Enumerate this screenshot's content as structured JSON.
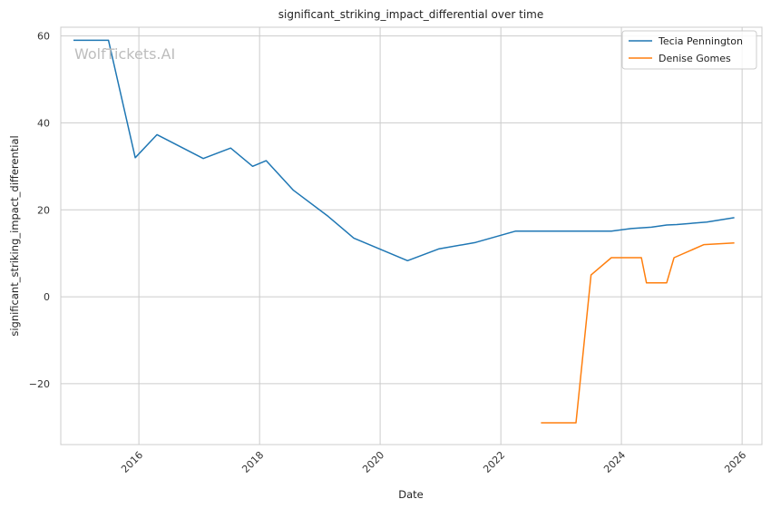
{
  "chart_data": {
    "type": "line",
    "title": "significant_striking_impact_differential over time",
    "xlabel": "Date",
    "ylabel": "significant_striking_impact_differential",
    "xlim": [
      "2014-09-15",
      "2026-05-01"
    ],
    "ylim": [
      -34,
      62
    ],
    "x_ticks": [
      "2016-01-01",
      "2018-01-01",
      "2020-01-01",
      "2022-01-01",
      "2024-01-01",
      "2026-01-01"
    ],
    "x_tick_labels": [
      "2016",
      "2018",
      "2020",
      "2022",
      "2024",
      "2026"
    ],
    "y_ticks": [
      60,
      40,
      20,
      0,
      -20
    ],
    "y_tick_labels": [
      "60",
      "40",
      "20",
      "0",
      "−20"
    ],
    "grid": true,
    "legend_position": "top-right",
    "watermark": "WolfTickets.AI",
    "series": [
      {
        "name": "Tecia Pennington",
        "color": "#1f77b4",
        "points": [
          {
            "x": "2014-12-01",
            "y": 59
          },
          {
            "x": "2015-07-01",
            "y": 59
          },
          {
            "x": "2015-12-10",
            "y": 32
          },
          {
            "x": "2016-04-20",
            "y": 37.3
          },
          {
            "x": "2017-01-25",
            "y": 31.8
          },
          {
            "x": "2017-07-10",
            "y": 34.2
          },
          {
            "x": "2017-11-20",
            "y": 30
          },
          {
            "x": "2018-02-10",
            "y": 31.3
          },
          {
            "x": "2018-07-25",
            "y": 24.5
          },
          {
            "x": "2019-02-20",
            "y": 18.5
          },
          {
            "x": "2019-07-25",
            "y": 13.5
          },
          {
            "x": "2020-06-15",
            "y": 8.3
          },
          {
            "x": "2020-12-20",
            "y": 11
          },
          {
            "x": "2021-08-01",
            "y": 12.5
          },
          {
            "x": "2022-04-01",
            "y": 15.1
          },
          {
            "x": "2023-11-01",
            "y": 15.1
          },
          {
            "x": "2024-03-01",
            "y": 15.7
          },
          {
            "x": "2024-07-01",
            "y": 16
          },
          {
            "x": "2024-10-01",
            "y": 16.5
          },
          {
            "x": "2024-12-01",
            "y": 16.6
          },
          {
            "x": "2025-06-01",
            "y": 17.2
          },
          {
            "x": "2025-11-15",
            "y": 18.2
          }
        ]
      },
      {
        "name": "Denise Gomes",
        "color": "#ff7f0e",
        "points": [
          {
            "x": "2022-09-01",
            "y": -29
          },
          {
            "x": "2023-04-01",
            "y": -29
          },
          {
            "x": "2023-07-01",
            "y": 5
          },
          {
            "x": "2023-11-01",
            "y": 9
          },
          {
            "x": "2024-05-01",
            "y": 9
          },
          {
            "x": "2024-06-01",
            "y": 3.2
          },
          {
            "x": "2024-10-01",
            "y": 3.2
          },
          {
            "x": "2024-11-15",
            "y": 9
          },
          {
            "x": "2025-05-15",
            "y": 12
          },
          {
            "x": "2025-11-15",
            "y": 12.4
          }
        ]
      }
    ]
  }
}
